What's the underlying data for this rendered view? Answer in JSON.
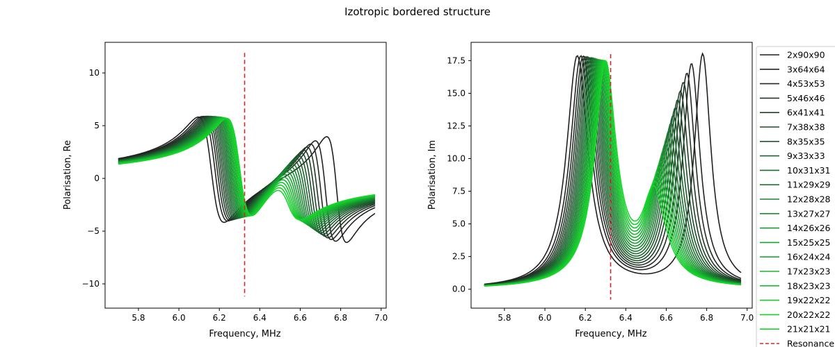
{
  "figure": {
    "title": "Izotropic bordered structure"
  },
  "chart_data": [
    {
      "type": "line",
      "xlabel": "Frequency, MHz",
      "ylabel": "Polarisation, Re",
      "xlim": [
        5.635,
        7.025
      ],
      "ylim": [
        -12.3,
        12.9
      ],
      "xticks": [
        5.8,
        6.0,
        6.2,
        6.4,
        6.6,
        6.8,
        7.0
      ],
      "xtick_labels": [
        "5.8",
        "6.0",
        "6.2",
        "6.4",
        "6.6",
        "6.8",
        "7.0"
      ],
      "yticks": [
        -10,
        -5,
        0,
        5,
        10
      ],
      "ytick_labels": [
        "−10",
        "−5",
        "0",
        "5",
        "10"
      ],
      "resonance_x": 6.325,
      "resonance_y": [
        -11.2,
        11.9
      ],
      "grid": false
    },
    {
      "type": "line",
      "xlabel": "Frequency, MHz",
      "ylabel": "Polarisation, Im",
      "xlim": [
        5.635,
        7.025
      ],
      "ylim": [
        -1.45,
        18.9
      ],
      "xticks": [
        5.8,
        6.0,
        6.2,
        6.4,
        6.6,
        6.8,
        7.0
      ],
      "xtick_labels": [
        "5.8",
        "6.0",
        "6.2",
        "6.4",
        "6.6",
        "6.8",
        "7.0"
      ],
      "yticks": [
        0.0,
        2.5,
        5.0,
        7.5,
        10.0,
        12.5,
        15.0,
        17.5
      ],
      "ytick_labels": [
        "0.0",
        "2.5",
        "5.0",
        "7.5",
        "10.0",
        "12.5",
        "15.0",
        "17.5"
      ],
      "resonance_x": 6.325,
      "resonance_y": [
        -0.8,
        18.0
      ],
      "grid": false
    }
  ],
  "series": [
    {
      "name": "2x90x90",
      "color": "#231f20"
    },
    {
      "name": "3x64x64",
      "color": "#232323"
    },
    {
      "name": "4x53x53",
      "color": "#222b23"
    },
    {
      "name": "5x46x46",
      "color": "#213626"
    },
    {
      "name": "6x41x41",
      "color": "#1f4128"
    },
    {
      "name": "7x38x38",
      "color": "#1e4c2a"
    },
    {
      "name": "8x35x35",
      "color": "#1d572c"
    },
    {
      "name": "9x33x33",
      "color": "#1c622e"
    },
    {
      "name": "10x31x31",
      "color": "#1b6d2f"
    },
    {
      "name": "11x29x29",
      "color": "#1a7830"
    },
    {
      "name": "12x28x28",
      "color": "#198330"
    },
    {
      "name": "13x27x27",
      "color": "#188e30"
    },
    {
      "name": "14x26x26",
      "color": "#17992f"
    },
    {
      "name": "15x25x25",
      "color": "#17a42f"
    },
    {
      "name": "16x24x24",
      "color": "#16ae2e"
    },
    {
      "name": "17x23x23",
      "color": "#16b82d"
    },
    {
      "name": "18x23x23",
      "color": "#15c12c"
    },
    {
      "name": "19x22x22",
      "color": "#15c92b"
    },
    {
      "name": "20x22x22",
      "color": "#14d02a"
    },
    {
      "name": "21x21x21",
      "color": "#14d629"
    }
  ],
  "legend": {
    "placement": "right",
    "resonance_label": "Resonance",
    "resonance_color": "#d62728"
  }
}
